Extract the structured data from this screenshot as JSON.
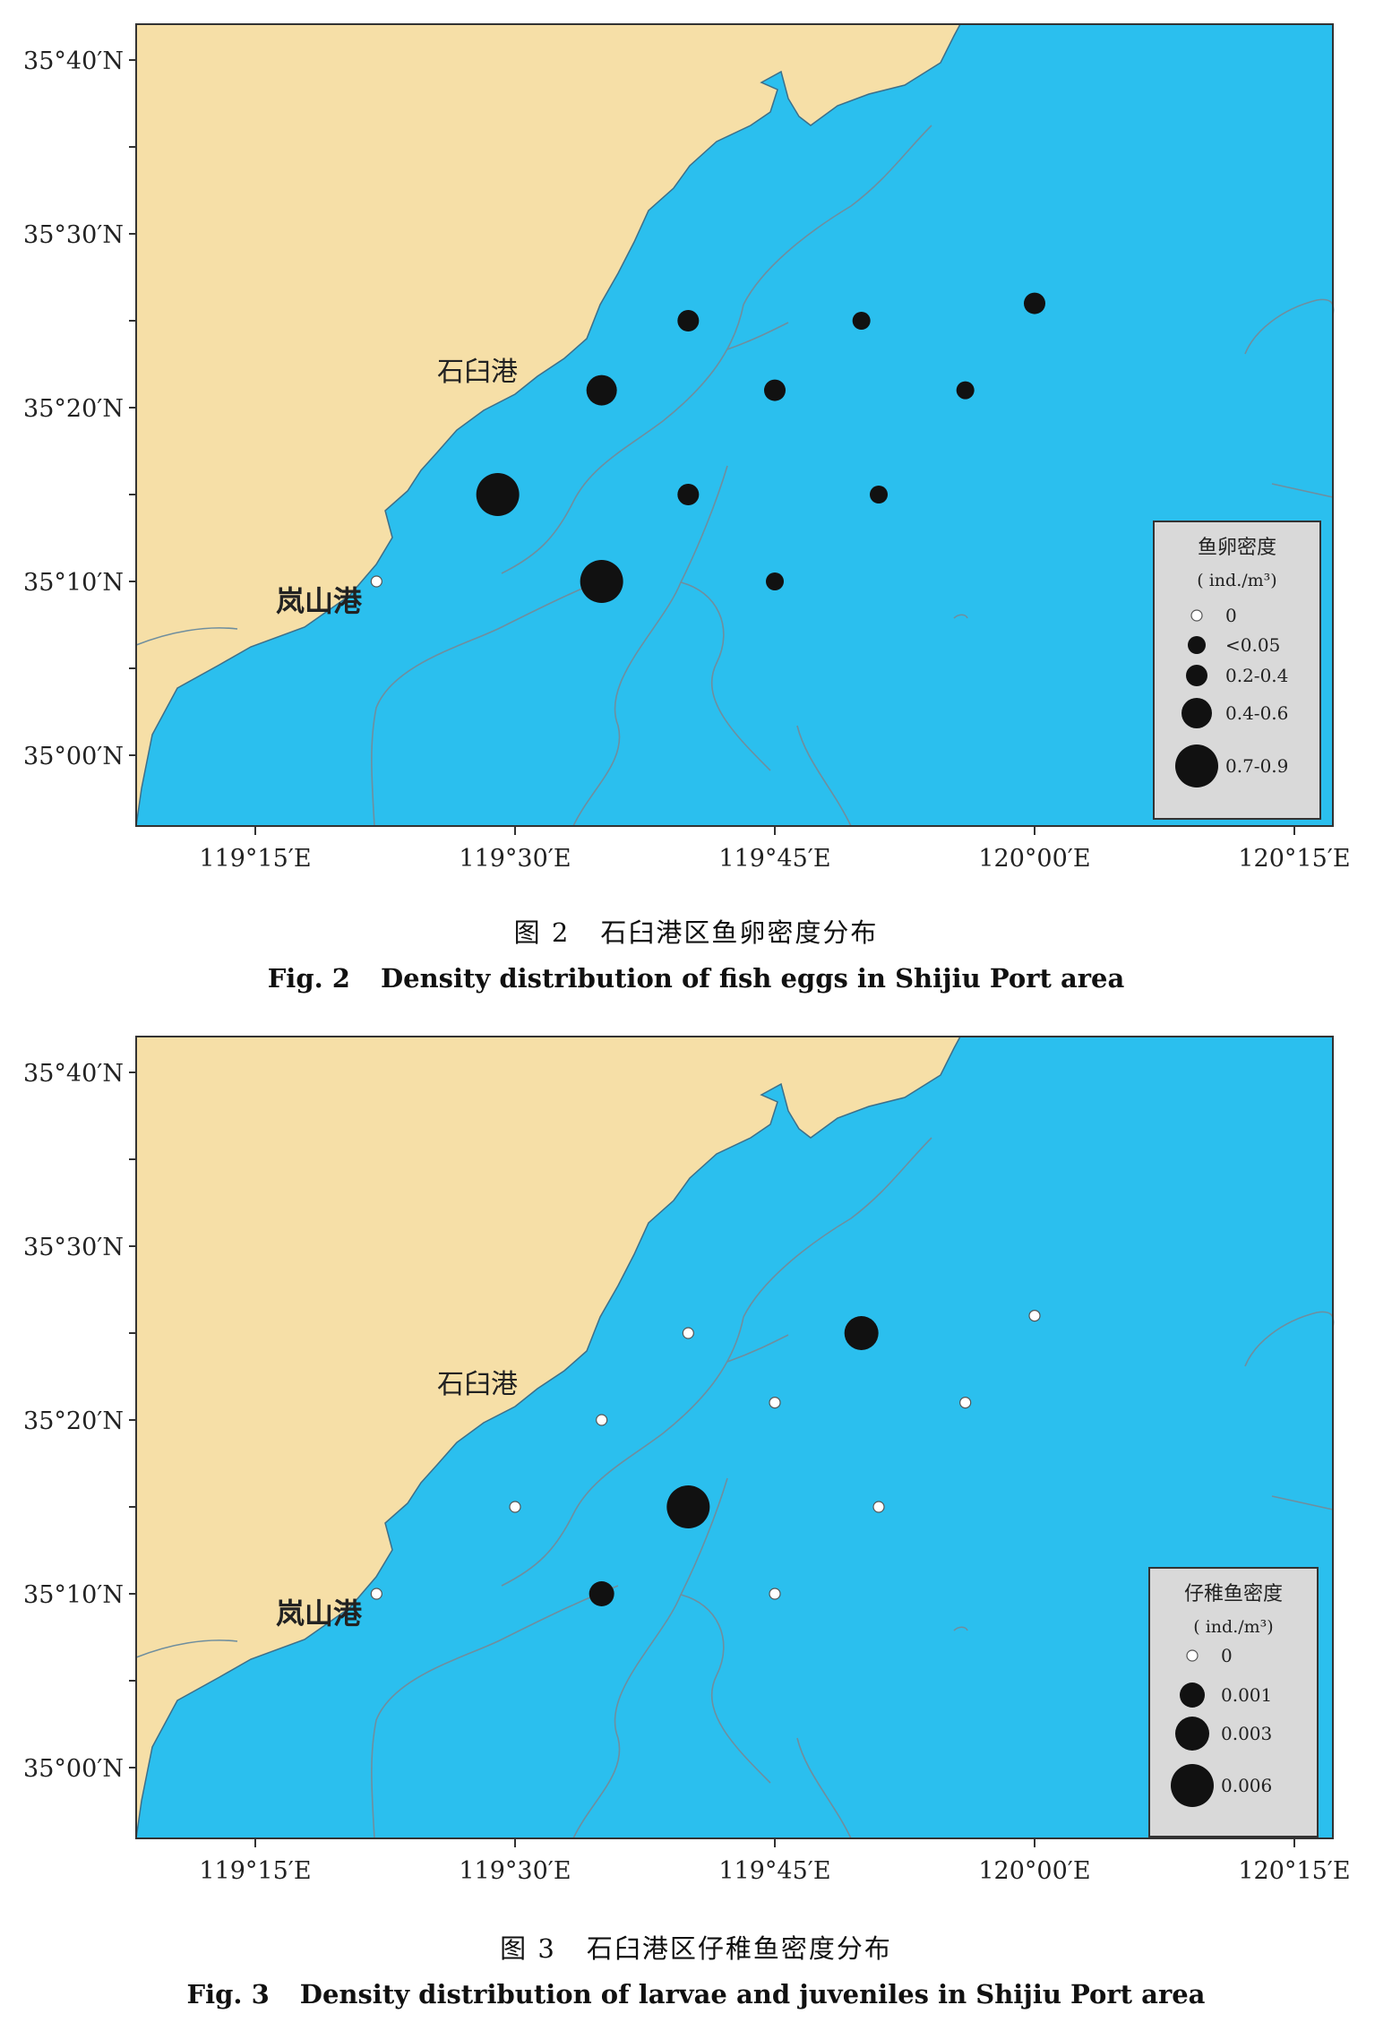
{
  "colors": {
    "sea": "#2bbfee",
    "land": "#f6dfa7",
    "legend_bg": "#d9d9d9",
    "marker": "#111111",
    "isobath": "#6f8e9e"
  },
  "axes": {
    "lat_labels": [
      "35°40′N",
      "35°30′N",
      "35°20′N",
      "35°10′N",
      "35°00′N"
    ],
    "lon_labels": [
      "119°15′E",
      "119°30′E",
      "119°45′E",
      "120°00′E",
      "120°15′E"
    ]
  },
  "place_labels": {
    "shijiu": "石臼港",
    "lanshan": "岚山港"
  },
  "figures": [
    {
      "caption_cn_num": "图 2",
      "caption_cn": "石臼港区鱼卵密度分布",
      "caption_en_num": "Fig. 2",
      "caption_en": "Density distribution of fish eggs in Shijiu Port area",
      "legend": {
        "title": "鱼卵密度",
        "unit": "( ind./m³)",
        "entries": [
          "0",
          "<0.05",
          "0.2-0.4",
          "0.4-0.6",
          "0.7-0.9"
        ]
      },
      "stations": [
        {
          "lon": "119°22′E",
          "lat": "35°10′N",
          "class": 0
        },
        {
          "lon": "119°29′E",
          "lat": "35°15′N",
          "class": 4
        },
        {
          "lon": "119°35′E",
          "lat": "35°21′N",
          "class": 3
        },
        {
          "lon": "119°35′E",
          "lat": "35°10′N",
          "class": 4
        },
        {
          "lon": "119°40′E",
          "lat": "35°25′N",
          "class": 2
        },
        {
          "lon": "119°40′E",
          "lat": "35°15′N",
          "class": 2
        },
        {
          "lon": "119°45′E",
          "lat": "35°21′N",
          "class": 2
        },
        {
          "lon": "119°45′E",
          "lat": "35°10′N",
          "class": 1
        },
        {
          "lon": "119°50′E",
          "lat": "35°25′N",
          "class": 1
        },
        {
          "lon": "119°51′E",
          "lat": "35°15′N",
          "class": 1
        },
        {
          "lon": "119°56′E",
          "lat": "35°21′N",
          "class": 1
        },
        {
          "lon": "120°00′E",
          "lat": "35°26′N",
          "class": 2
        }
      ]
    },
    {
      "caption_cn_num": "图 3",
      "caption_cn": "石臼港区仔稚鱼密度分布",
      "caption_en_num": "Fig. 3",
      "caption_en": "Density distribution of larvae and juveniles in Shijiu Port area",
      "legend": {
        "title": "仔稚鱼密度",
        "unit": "( ind./m³)",
        "entries": [
          "0",
          "0.001",
          "0.003",
          "0.006"
        ]
      },
      "stations": [
        {
          "lon": "119°22′E",
          "lat": "35°10′N",
          "class": 0
        },
        {
          "lon": "119°30′E",
          "lat": "35°15′N",
          "class": 0
        },
        {
          "lon": "119°35′E",
          "lat": "35°20′N",
          "class": 0
        },
        {
          "lon": "119°35′E",
          "lat": "35°10′N",
          "class": 1
        },
        {
          "lon": "119°40′E",
          "lat": "35°25′N",
          "class": 0
        },
        {
          "lon": "119°40′E",
          "lat": "35°15′N",
          "class": 3
        },
        {
          "lon": "119°45′E",
          "lat": "35°21′N",
          "class": 0
        },
        {
          "lon": "119°45′E",
          "lat": "35°10′N",
          "class": 0
        },
        {
          "lon": "119°50′E",
          "lat": "35°25′N",
          "class": 2
        },
        {
          "lon": "119°51′E",
          "lat": "35°15′N",
          "class": 0
        },
        {
          "lon": "119°56′E",
          "lat": "35°21′N",
          "class": 0
        },
        {
          "lon": "120°00′E",
          "lat": "35°26′N",
          "class": 0
        }
      ]
    }
  ]
}
